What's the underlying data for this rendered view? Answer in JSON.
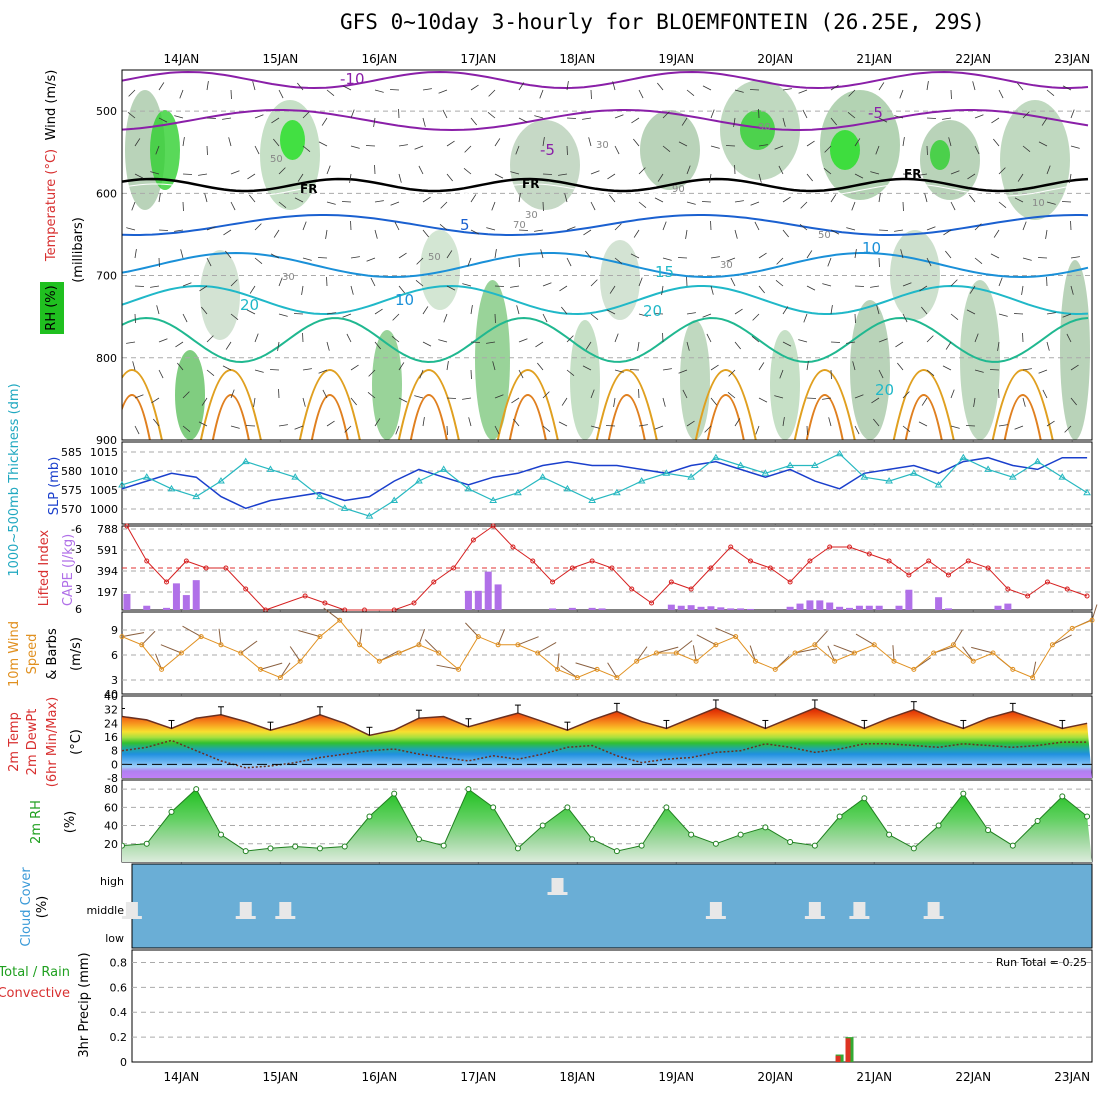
{
  "title": "GFS 0~10day 3-hourly for BLOEMFONTEIN (26.25E, 29S)",
  "dates": [
    "14JAN",
    "15JAN",
    "16JAN",
    "17JAN",
    "18JAN",
    "19JAN",
    "20JAN",
    "21JAN",
    "22JAN",
    "23JAN"
  ],
  "panels": {
    "upper_air": {
      "ylabel_wind": "Wind (m/s)",
      "ylabel_temp": "Temperature (°C)",
      "ylabel_pressure": "(millibars)",
      "ylabel_rh": "RH (%)",
      "yticks": [
        "500",
        "600",
        "700",
        "800",
        "900"
      ],
      "freezing_label": "FR",
      "temp_labels": [
        "-10",
        "-5",
        "-5",
        "5",
        "10",
        "15",
        "20",
        "10",
        "20",
        "20"
      ],
      "rh_labels": [
        "30",
        "50",
        "70",
        "90",
        "30",
        "50",
        "30",
        "50",
        "30",
        "90",
        "10"
      ]
    },
    "slp": {
      "ylabel_thick": "1000~500mb Thickness (dm)",
      "ylabel_slp": "SLP (mb)",
      "left_ticks": [
        "585",
        "580",
        "575",
        "570"
      ],
      "right_ticks": [
        "1015",
        "1010",
        "1005",
        "1000"
      ]
    },
    "cape": {
      "ylabel_li": "Lifted Index",
      "ylabel_cape": "CAPE (J/kg)",
      "left_ticks": [
        "-6",
        "-3",
        "0",
        "3",
        "6"
      ],
      "right_ticks": [
        "788",
        "591",
        "394",
        "197"
      ]
    },
    "wind10m": {
      "ylabel1": "10m Wind",
      "ylabel2": "Speed",
      "ylabel3": "& Barbs",
      "ylabel_unit": "(m/s)",
      "yticks": [
        "9",
        "6",
        "3",
        "40"
      ]
    },
    "temp2m": {
      "ylabel1": "2m Temp",
      "ylabel2": "2m DewPt",
      "ylabel3": "(6hr Min/Max)",
      "ylabel_unit": "(°C)",
      "yticks": [
        "40",
        "32",
        "24",
        "16",
        "8",
        "0",
        "-8"
      ]
    },
    "rh2m": {
      "ylabel": "2m RH",
      "ylabel_unit": "(%)",
      "yticks": [
        "80",
        "60",
        "40",
        "20"
      ]
    },
    "cloud": {
      "ylabel": "Cloud Cover",
      "ylabel_unit": "(%)",
      "levels": [
        "high",
        "middle",
        "low"
      ]
    },
    "precip": {
      "ylabel_total": "Total / Rain",
      "ylabel_conv": "Convective",
      "ylabel_precip": "3hr Precip (mm)",
      "yticks": [
        "0.8",
        "0.6",
        "0.4",
        "0.2",
        "0"
      ],
      "run_total": "Run Total = 0.25"
    }
  },
  "colors": {
    "slp": "#1a3fcc",
    "thickness": "#27b8c0",
    "lifted_index": "#d62020",
    "cape": "#b070e8",
    "wind_speed": "#e09020",
    "rh_green": "#22cc22",
    "cloud_bg": "#6aaed6",
    "precip_total": "#33aa33",
    "precip_conv": "#dd3322"
  },
  "chart_data": [
    {
      "type": "line",
      "title": "SLP and 1000~500mb Thickness",
      "x": [
        "13.5",
        "13.75",
        "14.0",
        "14.25",
        "14.5",
        "14.75",
        "15.0",
        "15.25",
        "15.5",
        "15.75",
        "16.0",
        "16.25",
        "16.5",
        "16.75",
        "17.0",
        "17.25",
        "17.5",
        "17.75",
        "18.0",
        "18.25",
        "18.5",
        "18.75",
        "19.0",
        "19.25",
        "19.5",
        "19.75",
        "20.0",
        "20.25",
        "20.5",
        "20.75",
        "21.0",
        "21.25",
        "21.5",
        "21.75",
        "22.0",
        "22.25",
        "22.5",
        "22.75",
        "23.0",
        "23.25"
      ],
      "series": [
        {
          "name": "SLP (mb)",
          "values": [
            1006,
            1008,
            1010,
            1009,
            1004,
            1001,
            1003,
            1004,
            1005,
            1003,
            1004,
            1008,
            1011,
            1009,
            1007,
            1009,
            1010,
            1012,
            1013,
            1012,
            1012,
            1011,
            1010,
            1012,
            1013,
            1011,
            1009,
            1011,
            1008,
            1006,
            1010,
            1011,
            1012,
            1010,
            1013,
            1014,
            1012,
            1011,
            1014,
            1014
          ]
        },
        {
          "name": "1000~500mb Thickness (dm)",
          "values": [
            578,
            580,
            577,
            575,
            579,
            584,
            582,
            580,
            575,
            572,
            570,
            574,
            579,
            582,
            577,
            574,
            576,
            580,
            577,
            574,
            576,
            579,
            581,
            580,
            585,
            583,
            581,
            583,
            583,
            586,
            580,
            579,
            581,
            578,
            585,
            582,
            580,
            584,
            580,
            576
          ]
        }
      ],
      "ylim_slp": [
        998,
        1017
      ],
      "ylim_thickness": [
        569,
        588
      ]
    },
    {
      "type": "bar",
      "title": "CAPE and Lifted Index",
      "x": [
        "13.55",
        "13.75",
        "13.95",
        "14.05",
        "14.15",
        "14.25",
        "14.45",
        "14.65",
        "17.0",
        "17.1",
        "17.2",
        "17.3",
        "17.85",
        "18.05",
        "18.25",
        "18.35",
        "19.05",
        "19.15",
        "19.25",
        "19.35",
        "19.45",
        "19.55",
        "19.65",
        "19.75",
        "19.85",
        "20.25",
        "20.35",
        "20.45",
        "20.55",
        "20.65",
        "20.75",
        "20.85",
        "20.95",
        "21.05",
        "21.15",
        "21.35",
        "21.45",
        "21.75",
        "21.85",
        "22.35",
        "22.45"
      ],
      "series": [
        {
          "name": "CAPE (J/kg)",
          "values": [
            150,
            40,
            20,
            250,
            140,
            280,
            0,
            0,
            180,
            180,
            360,
            240,
            15,
            20,
            20,
            15,
            50,
            40,
            45,
            30,
            35,
            25,
            15,
            15,
            10,
            30,
            60,
            90,
            90,
            70,
            30,
            20,
            40,
            40,
            40,
            40,
            190,
            120,
            15,
            40,
            60
          ]
        }
      ],
      "lifted_index_x": [
        "13.55",
        "13.75",
        "13.95",
        "14.15",
        "14.35",
        "14.55",
        "14.75",
        "14.95",
        "15.35",
        "15.55",
        "15.75",
        "15.95",
        "16.25",
        "16.45",
        "16.65",
        "16.85",
        "17.05",
        "17.25",
        "17.45",
        "17.65",
        "17.85",
        "18.05",
        "18.25",
        "18.45",
        "18.65",
        "18.85",
        "19.05",
        "19.25",
        "19.45",
        "19.65",
        "19.85",
        "20.05",
        "20.25",
        "20.45",
        "20.65",
        "20.85",
        "21.05",
        "21.25",
        "21.45",
        "21.65",
        "21.85",
        "22.05",
        "22.25",
        "22.45",
        "22.65",
        "22.85",
        "23.05",
        "23.25"
      ],
      "lifted_index": [
        -6,
        -1,
        2,
        -1,
        0,
        0,
        3,
        6,
        4,
        5,
        6,
        6,
        6,
        5,
        2,
        0,
        -4,
        -6,
        -3,
        -1,
        2,
        0,
        -1,
        0,
        3,
        5,
        2,
        3,
        0,
        -3,
        -1,
        0,
        2,
        -1,
        -3,
        -3,
        -2,
        -1,
        1,
        -1,
        1,
        -1,
        0,
        3,
        4,
        2,
        3,
        4
      ],
      "ylim_cape": [
        0,
        788
      ],
      "ylim_li": [
        6,
        -6
      ]
    },
    {
      "type": "line",
      "title": "10m Wind Speed",
      "x": [
        "13.5",
        "13.7",
        "13.9",
        "14.1",
        "14.3",
        "14.5",
        "14.7",
        "14.9",
        "15.1",
        "15.3",
        "15.5",
        "15.7",
        "15.9",
        "16.1",
        "16.3",
        "16.5",
        "16.7",
        "16.9",
        "17.1",
        "17.3",
        "17.5",
        "17.7",
        "17.9",
        "18.1",
        "18.3",
        "18.5",
        "18.7",
        "18.9",
        "19.1",
        "19.3",
        "19.5",
        "19.7",
        "19.9",
        "20.1",
        "20.3",
        "20.5",
        "20.7",
        "20.9",
        "21.1",
        "21.3",
        "21.5",
        "21.7",
        "21.9",
        "22.1",
        "22.3",
        "22.5",
        "22.7",
        "22.9",
        "23.1",
        "23.3"
      ],
      "series": [
        {
          "name": "Wind Speed (m/s)",
          "values": [
            7,
            6,
            3,
            5,
            7,
            6,
            5,
            3,
            2,
            4,
            7,
            9,
            6,
            4,
            5,
            6,
            5,
            3,
            7,
            6,
            6,
            5,
            3,
            2,
            3,
            2,
            4,
            5,
            5,
            4,
            6,
            7,
            4,
            3,
            5,
            6,
            4,
            5,
            6,
            4,
            3,
            5,
            6,
            4,
            5,
            3,
            2,
            6,
            8,
            9
          ]
        }
      ],
      "ylim": [
        0,
        10
      ]
    },
    {
      "type": "area",
      "title": "2m Temp and DewPt",
      "x": [
        "13.5",
        "13.75",
        "14.0",
        "14.25",
        "14.5",
        "14.75",
        "15.0",
        "15.25",
        "15.5",
        "15.75",
        "16.0",
        "16.25",
        "16.5",
        "16.75",
        "17.0",
        "17.25",
        "17.5",
        "17.75",
        "18.0",
        "18.25",
        "18.5",
        "18.75",
        "19.0",
        "19.25",
        "19.5",
        "19.75",
        "20.0",
        "20.25",
        "20.5",
        "20.75",
        "21.0",
        "21.25",
        "21.5",
        "21.75",
        "22.0",
        "22.25",
        "22.5",
        "22.75",
        "23.0",
        "23.25"
      ],
      "series": [
        {
          "name": "2m Temp (°C)",
          "values": [
            28,
            26,
            21,
            27,
            29,
            25,
            20,
            24,
            29,
            24,
            17,
            20,
            27,
            28,
            22,
            26,
            30,
            25,
            20,
            26,
            31,
            25,
            21,
            27,
            33,
            27,
            21,
            27,
            33,
            27,
            21,
            27,
            32,
            26,
            21,
            27,
            31,
            26,
            21,
            24
          ]
        },
        {
          "name": "2m DewPt (°C)",
          "values": [
            8,
            10,
            14,
            8,
            2,
            -2,
            -1,
            1,
            4,
            6,
            8,
            9,
            6,
            4,
            2,
            5,
            3,
            6,
            10,
            11,
            5,
            1,
            3,
            4,
            7,
            8,
            12,
            10,
            7,
            9,
            12,
            12,
            11,
            10,
            12,
            11,
            10,
            11,
            13,
            13
          ]
        }
      ],
      "ylim": [
        -8,
        40
      ]
    },
    {
      "type": "area",
      "title": "2m RH",
      "x": [
        "13.5",
        "13.75",
        "14.0",
        "14.25",
        "14.5",
        "14.75",
        "15.0",
        "15.25",
        "15.5",
        "15.75",
        "16.0",
        "16.25",
        "16.5",
        "16.75",
        "17.0",
        "17.25",
        "17.5",
        "17.75",
        "18.0",
        "18.25",
        "18.5",
        "18.75",
        "19.0",
        "19.25",
        "19.5",
        "19.75",
        "20.0",
        "20.25",
        "20.5",
        "20.75",
        "21.0",
        "21.25",
        "21.5",
        "21.75",
        "22.0",
        "22.25",
        "22.5",
        "22.75",
        "23.0",
        "23.25"
      ],
      "series": [
        {
          "name": "2m RH (%)",
          "values": [
            18,
            20,
            55,
            80,
            30,
            12,
            15,
            17,
            15,
            17,
            50,
            75,
            25,
            18,
            80,
            60,
            15,
            40,
            60,
            25,
            12,
            18,
            60,
            30,
            20,
            30,
            38,
            22,
            18,
            50,
            70,
            30,
            15,
            40,
            75,
            35,
            18,
            45,
            72,
            50
          ]
        }
      ],
      "ylim": [
        0,
        90
      ]
    },
    {
      "type": "bar",
      "title": "Cloud Cover",
      "categories": [
        "low",
        "middle",
        "high"
      ],
      "events": [
        {
          "x": "13.6",
          "level": "middle"
        },
        {
          "x": "14.75",
          "level": "middle"
        },
        {
          "x": "15.15",
          "level": "middle"
        },
        {
          "x": "17.9",
          "level": "high"
        },
        {
          "x": "19.5",
          "level": "middle"
        },
        {
          "x": "20.5",
          "level": "middle"
        },
        {
          "x": "20.95",
          "level": "middle"
        },
        {
          "x": "21.7",
          "level": "middle"
        }
      ]
    },
    {
      "type": "bar",
      "title": "3hr Precip",
      "x": [
        "20.75",
        "20.85"
      ],
      "series": [
        {
          "name": "Total / Rain (mm)",
          "values": [
            0.06,
            0.2
          ]
        },
        {
          "name": "Convective (mm)",
          "values": [
            0.05,
            0.19
          ]
        }
      ],
      "ylim": [
        0,
        0.9
      ],
      "annotation": "Run Total = 0.25"
    }
  ]
}
